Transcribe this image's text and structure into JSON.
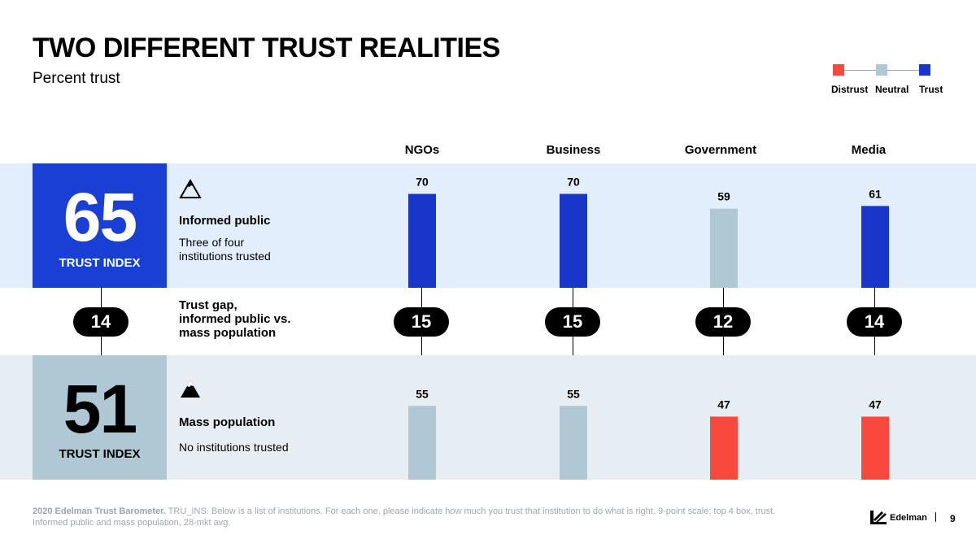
{
  "title": "TWO DIFFERENT TRUST REALITIES",
  "subtitle": "Percent trust",
  "legend": {
    "items": [
      {
        "label": "Distrust",
        "color": "#f9483e"
      },
      {
        "label": "Neutral",
        "color": "#b0c8d3"
      },
      {
        "label": "Trust",
        "color": "#1a35c9"
      }
    ]
  },
  "informed": {
    "index_value": "65",
    "index_label": "TRUST INDEX",
    "title": "Informed public",
    "desc_line1": "Three of four",
    "desc_line2": "institutions trusted"
  },
  "mass": {
    "index_value": "51",
    "index_label": "TRUST INDEX",
    "title": "Mass population",
    "desc": "No institutions trusted"
  },
  "gap": {
    "label_line1": "Trust gap,",
    "label_line2": "informed public vs.",
    "label_line3": "mass population",
    "overall": "14"
  },
  "chart_data": {
    "type": "bar",
    "title": "TWO DIFFERENT TRUST REALITIES",
    "ylabel": "Percent trust",
    "categories": [
      "NGOs",
      "Business",
      "Government",
      "Media"
    ],
    "series": [
      {
        "name": "Informed public",
        "values": [
          70,
          70,
          59,
          61
        ],
        "colors": [
          "#1a35c9",
          "#1a35c9",
          "#b0c8d3",
          "#1a35c9"
        ]
      },
      {
        "name": "Mass population",
        "values": [
          55,
          55,
          47,
          47
        ],
        "colors": [
          "#b0c8d3",
          "#b0c8d3",
          "#f9483e",
          "#f9483e"
        ]
      }
    ],
    "gaps": [
      "15",
      "15",
      "12",
      "14"
    ],
    "ylim": [
      0,
      100
    ]
  },
  "footnote": {
    "source": "2020 Edelman Trust Barometer.",
    "line1": " TRU_INS. Below is a list of institutions. For each one, please indicate how much you trust that institution to do what is right. 9-point scale; top 4 box, trust.",
    "line2": "Informed public and mass population, 28-mkt avg."
  },
  "brand": "Edelman",
  "page_number": "9"
}
